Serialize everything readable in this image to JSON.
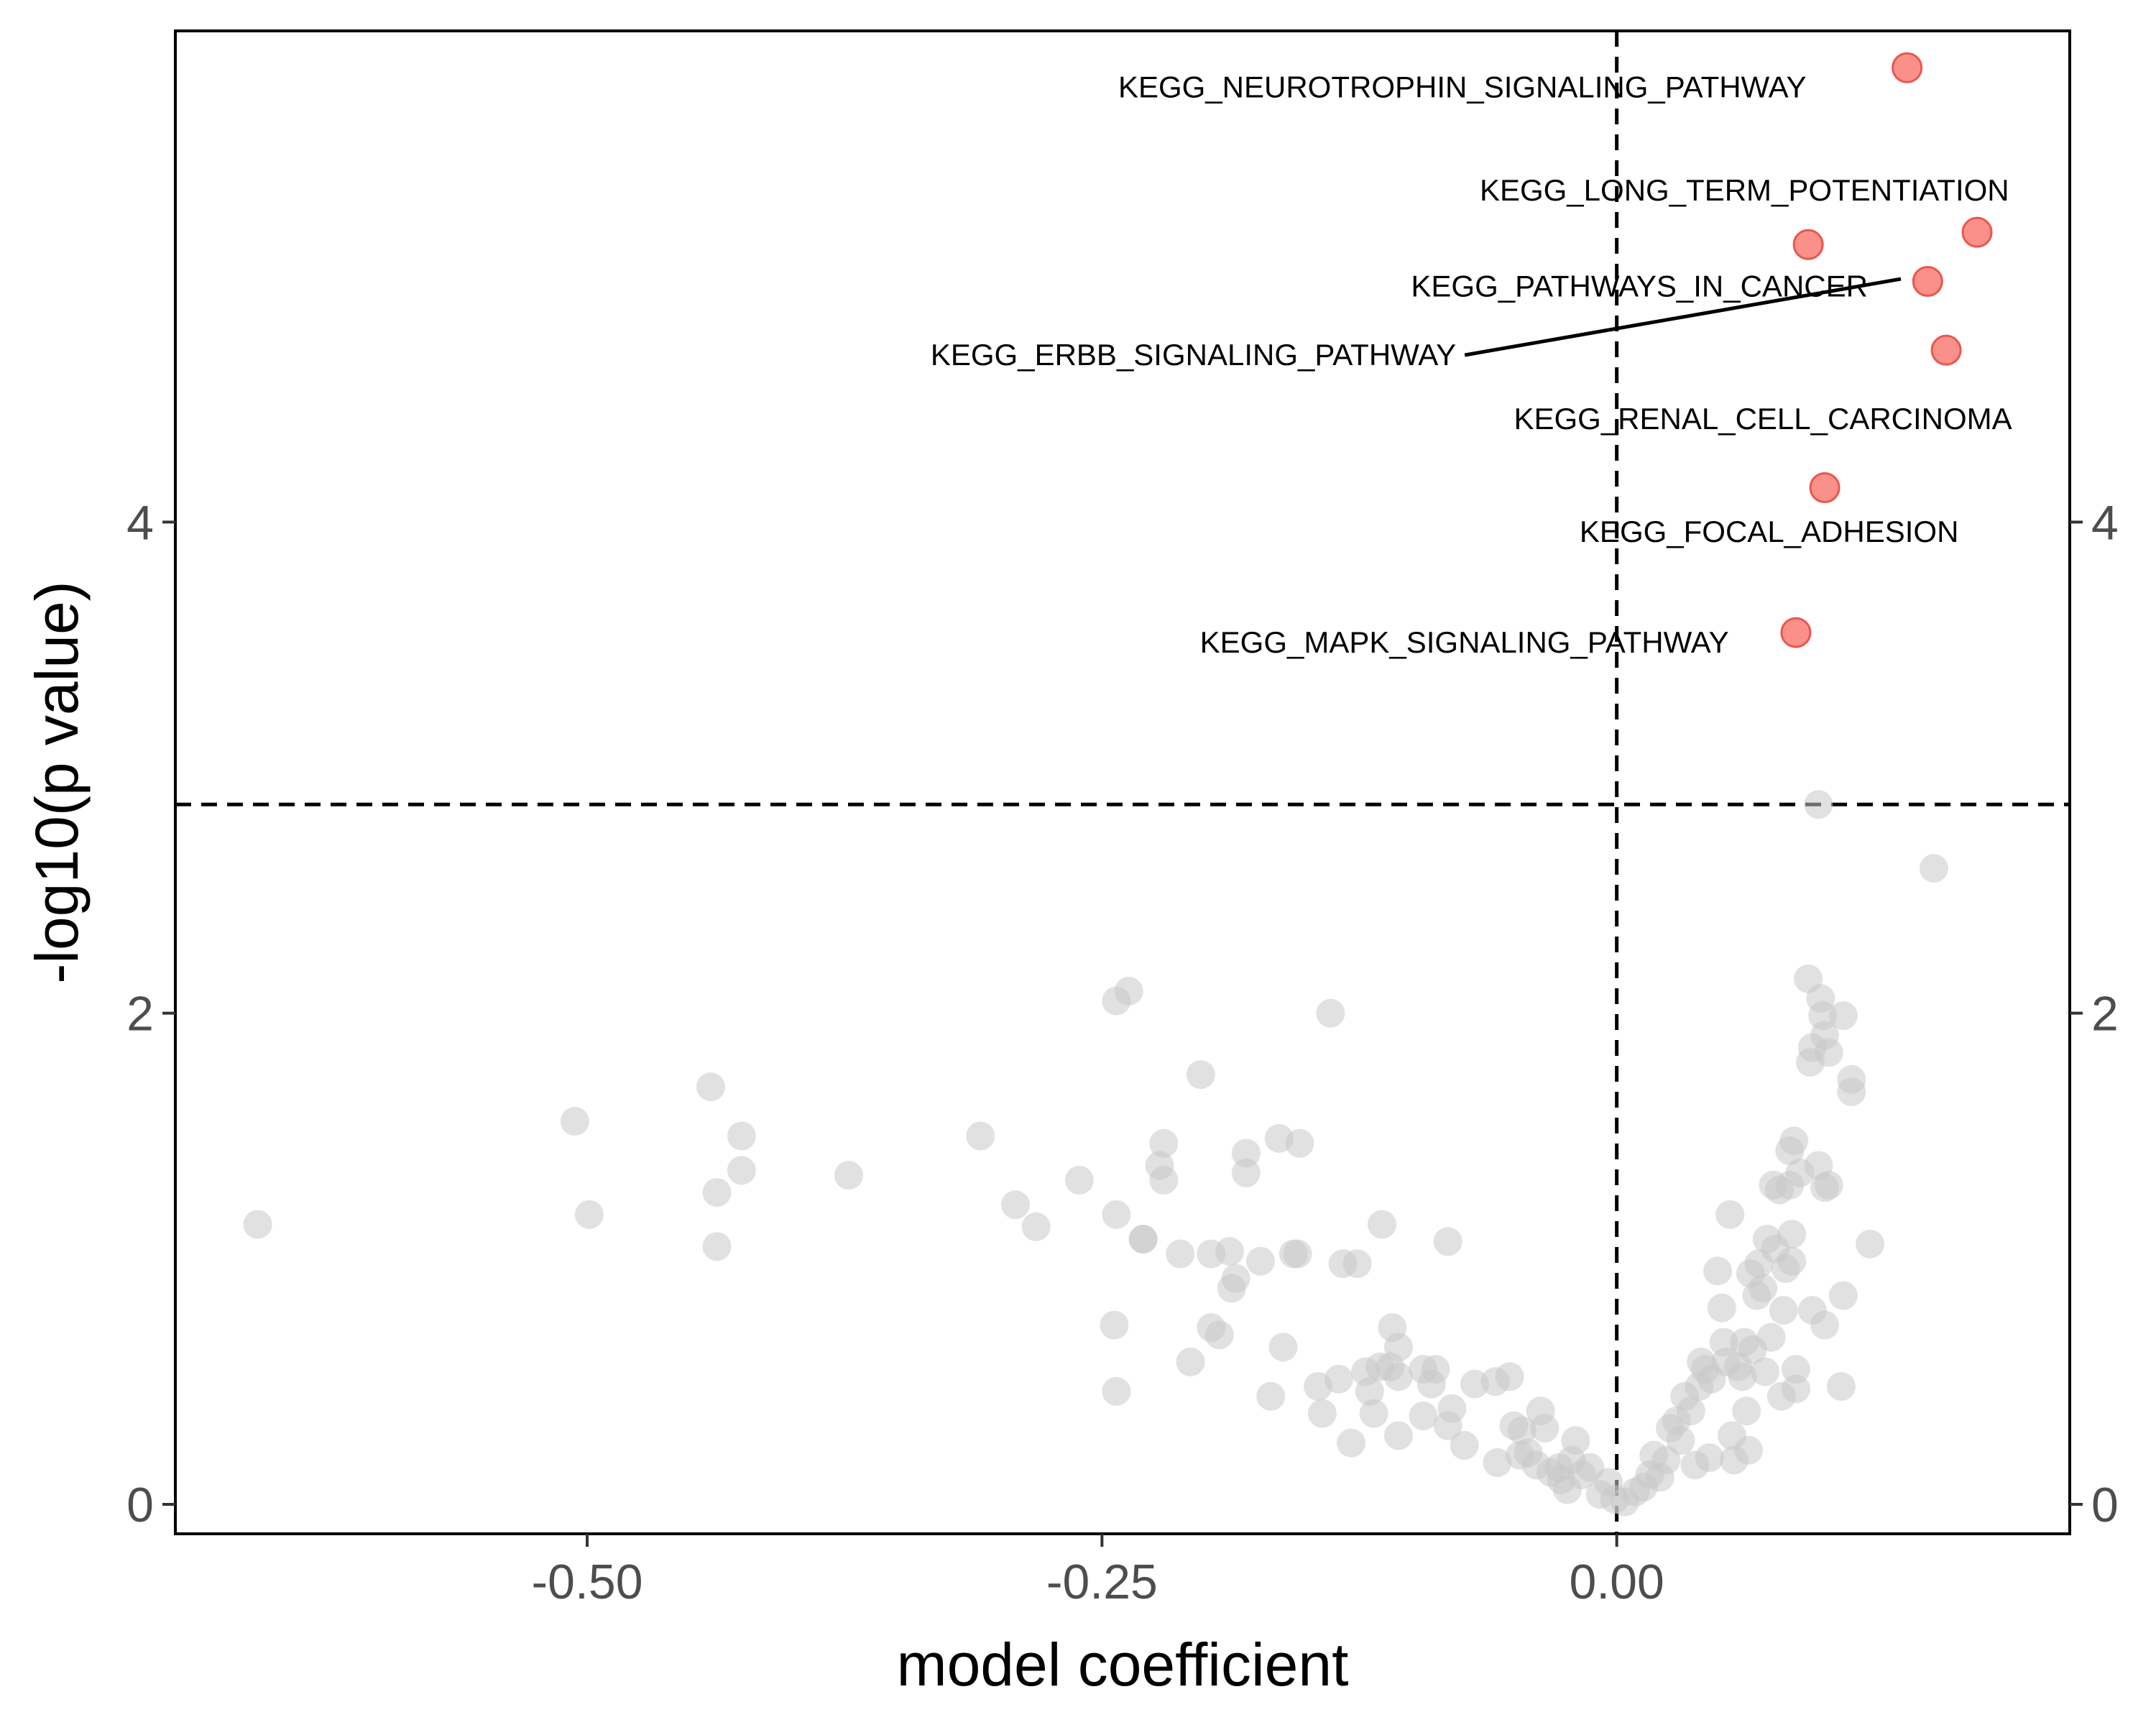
{
  "chart_data": {
    "type": "scatter",
    "xlabel": "model coefficient",
    "ylabel": "-log10(p value)",
    "xlim": [
      -0.7,
      0.22
    ],
    "ylim": [
      -0.12,
      6.0
    ],
    "x_ticks": [
      -0.5,
      -0.25,
      0.0
    ],
    "x_tick_labels": [
      "-0.50",
      "-0.25",
      "0.00"
    ],
    "y_ticks": [
      0,
      2,
      4
    ],
    "y_tick_labels": [
      "0",
      "2",
      "4"
    ],
    "secondary_y_axis": true,
    "reference_lines": {
      "vertical_x": 0.0,
      "horizontal_y": 2.85,
      "style": "dashed"
    },
    "colors": {
      "significant": "#f8766d",
      "nonsignificant": "#c8c8c8"
    },
    "series": [
      {
        "group": "significant",
        "points": [
          {
            "x": 0.141,
            "y": 5.85,
            "label": "KEGG_NEUROTROPHIN_SIGNALING_PATHWAY"
          },
          {
            "x": 0.175,
            "y": 5.18,
            "label": "KEGG_LONG_TERM_POTENTIATION"
          },
          {
            "x": 0.093,
            "y": 5.13
          },
          {
            "x": 0.151,
            "y": 4.98,
            "label": "KEGG_PATHWAYS_IN_CANCER"
          },
          {
            "x": 0.16,
            "y": 4.7,
            "label": "KEGG_RENAL_CELL_CARCINOMA"
          },
          {
            "x": 0.101,
            "y": 4.14,
            "label": "KEGG_FOCAL_ADHESION"
          },
          {
            "x": 0.087,
            "y": 3.55,
            "label": "KEGG_MAPK_SIGNALING_PATHWAY"
          }
        ]
      },
      {
        "group": "nonsignificant",
        "points": [
          {
            "x": -0.66,
            "y": 1.14
          },
          {
            "x": -0.506,
            "y": 1.56
          },
          {
            "x": -0.499,
            "y": 1.18
          },
          {
            "x": -0.44,
            "y": 1.7
          },
          {
            "x": -0.437,
            "y": 1.27
          },
          {
            "x": -0.437,
            "y": 1.05
          },
          {
            "x": -0.425,
            "y": 1.5
          },
          {
            "x": -0.425,
            "y": 1.36
          },
          {
            "x": -0.373,
            "y": 1.34
          },
          {
            "x": -0.309,
            "y": 1.5
          },
          {
            "x": -0.292,
            "y": 1.22
          },
          {
            "x": -0.282,
            "y": 1.13
          },
          {
            "x": -0.261,
            "y": 1.32
          },
          {
            "x": -0.243,
            "y": 2.05
          },
          {
            "x": -0.237,
            "y": 2.09
          },
          {
            "x": -0.243,
            "y": 1.18
          },
          {
            "x": -0.23,
            "y": 1.08
          },
          {
            "x": -0.23,
            "y": 1.08
          },
          {
            "x": -0.22,
            "y": 1.47
          },
          {
            "x": -0.222,
            "y": 1.38
          },
          {
            "x": -0.22,
            "y": 1.32
          },
          {
            "x": -0.212,
            "y": 1.02
          },
          {
            "x": -0.244,
            "y": 0.73
          },
          {
            "x": -0.243,
            "y": 0.46
          },
          {
            "x": -0.207,
            "y": 0.58
          },
          {
            "x": -0.202,
            "y": 1.75
          },
          {
            "x": -0.197,
            "y": 1.02
          },
          {
            "x": -0.188,
            "y": 1.03
          },
          {
            "x": -0.187,
            "y": 0.88
          },
          {
            "x": -0.185,
            "y": 0.92
          },
          {
            "x": -0.197,
            "y": 0.72
          },
          {
            "x": -0.193,
            "y": 0.69
          },
          {
            "x": -0.18,
            "y": 1.43
          },
          {
            "x": -0.18,
            "y": 1.35
          },
          {
            "x": -0.173,
            "y": 0.99
          },
          {
            "x": -0.164,
            "y": 1.49
          },
          {
            "x": -0.154,
            "y": 1.47
          },
          {
            "x": -0.157,
            "y": 1.02
          },
          {
            "x": -0.155,
            "y": 1.02
          },
          {
            "x": -0.162,
            "y": 0.64
          },
          {
            "x": -0.168,
            "y": 0.44
          },
          {
            "x": -0.139,
            "y": 2.0
          },
          {
            "x": -0.133,
            "y": 0.98
          },
          {
            "x": -0.126,
            "y": 0.98
          },
          {
            "x": -0.145,
            "y": 0.48
          },
          {
            "x": -0.143,
            "y": 0.37
          },
          {
            "x": -0.135,
            "y": 0.51
          },
          {
            "x": -0.129,
            "y": 0.25
          },
          {
            "x": -0.122,
            "y": 0.54
          },
          {
            "x": -0.12,
            "y": 0.46
          },
          {
            "x": -0.118,
            "y": 0.37
          },
          {
            "x": -0.114,
            "y": 1.14
          },
          {
            "x": -0.109,
            "y": 0.72
          },
          {
            "x": -0.106,
            "y": 0.64
          },
          {
            "x": -0.115,
            "y": 0.56
          },
          {
            "x": -0.11,
            "y": 0.56
          },
          {
            "x": -0.106,
            "y": 0.52
          },
          {
            "x": -0.106,
            "y": 0.28
          },
          {
            "x": -0.094,
            "y": 0.55
          },
          {
            "x": -0.088,
            "y": 0.55
          },
          {
            "x": -0.09,
            "y": 0.49
          },
          {
            "x": -0.094,
            "y": 0.36
          },
          {
            "x": -0.082,
            "y": 1.07
          },
          {
            "x": -0.08,
            "y": 0.39
          },
          {
            "x": -0.082,
            "y": 0.32
          },
          {
            "x": -0.074,
            "y": 0.24
          },
          {
            "x": -0.069,
            "y": 0.49
          },
          {
            "x": -0.059,
            "y": 0.5
          },
          {
            "x": -0.052,
            "y": 0.52
          },
          {
            "x": -0.058,
            "y": 0.17
          },
          {
            "x": -0.05,
            "y": 0.32
          },
          {
            "x": -0.046,
            "y": 0.3
          },
          {
            "x": -0.047,
            "y": 0.2
          },
          {
            "x": -0.043,
            "y": 0.21
          },
          {
            "x": -0.037,
            "y": 0.38
          },
          {
            "x": -0.035,
            "y": 0.31
          },
          {
            "x": -0.039,
            "y": 0.16
          },
          {
            "x": -0.032,
            "y": 0.13
          },
          {
            "x": -0.028,
            "y": 0.15
          },
          {
            "x": -0.027,
            "y": 0.1
          },
          {
            "x": -0.024,
            "y": 0.06
          },
          {
            "x": -0.022,
            "y": 0.18
          },
          {
            "x": -0.02,
            "y": 0.26
          },
          {
            "x": -0.017,
            "y": 0.12
          },
          {
            "x": -0.013,
            "y": 0.15
          },
          {
            "x": -0.008,
            "y": 0.04
          },
          {
            "x": -0.004,
            "y": 0.09
          },
          {
            "x": -0.001,
            "y": 0.02
          },
          {
            "x": 0.004,
            "y": 0.01
          },
          {
            "x": 0.009,
            "y": 0.05
          },
          {
            "x": 0.013,
            "y": 0.07
          },
          {
            "x": 0.016,
            "y": 0.12
          },
          {
            "x": 0.018,
            "y": 0.2
          },
          {
            "x": 0.021,
            "y": 0.11
          },
          {
            "x": 0.024,
            "y": 0.18
          },
          {
            "x": 0.026,
            "y": 0.31
          },
          {
            "x": 0.029,
            "y": 0.34
          },
          {
            "x": 0.031,
            "y": 0.26
          },
          {
            "x": 0.033,
            "y": 0.44
          },
          {
            "x": 0.036,
            "y": 0.38
          },
          {
            "x": 0.038,
            "y": 0.16
          },
          {
            "x": 0.04,
            "y": 0.48
          },
          {
            "x": 0.041,
            "y": 0.58
          },
          {
            "x": 0.043,
            "y": 0.55
          },
          {
            "x": 0.045,
            "y": 0.19
          },
          {
            "x": 0.046,
            "y": 0.51
          },
          {
            "x": 0.049,
            "y": 0.95
          },
          {
            "x": 0.051,
            "y": 0.8
          },
          {
            "x": 0.052,
            "y": 0.66
          },
          {
            "x": 0.053,
            "y": 0.58
          },
          {
            "x": 0.055,
            "y": 1.18
          },
          {
            "x": 0.056,
            "y": 0.28
          },
          {
            "x": 0.057,
            "y": 0.18
          },
          {
            "x": 0.059,
            "y": 0.56
          },
          {
            "x": 0.061,
            "y": 0.52
          },
          {
            "x": 0.062,
            "y": 0.66
          },
          {
            "x": 0.063,
            "y": 0.38
          },
          {
            "x": 0.064,
            "y": 0.22
          },
          {
            "x": 0.065,
            "y": 0.94
          },
          {
            "x": 0.066,
            "y": 0.63
          },
          {
            "x": 0.068,
            "y": 0.85
          },
          {
            "x": 0.069,
            "y": 0.98
          },
          {
            "x": 0.071,
            "y": 0.88
          },
          {
            "x": 0.072,
            "y": 0.54
          },
          {
            "x": 0.073,
            "y": 1.08
          },
          {
            "x": 0.075,
            "y": 0.68
          },
          {
            "x": 0.076,
            "y": 1.3
          },
          {
            "x": 0.077,
            "y": 1.04
          },
          {
            "x": 0.079,
            "y": 1.28
          },
          {
            "x": 0.08,
            "y": 0.44
          },
          {
            "x": 0.081,
            "y": 0.79
          },
          {
            "x": 0.082,
            "y": 0.96
          },
          {
            "x": 0.084,
            "y": 1.3
          },
          {
            "x": 0.085,
            "y": 1.1
          },
          {
            "x": 0.085,
            "y": 0.99
          },
          {
            "x": 0.086,
            "y": 1.48
          },
          {
            "x": 0.087,
            "y": 0.55
          },
          {
            "x": 0.087,
            "y": 0.47
          },
          {
            "x": 0.084,
            "y": 1.44
          },
          {
            "x": 0.089,
            "y": 1.35
          },
          {
            "x": 0.093,
            "y": 2.14
          },
          {
            "x": 0.094,
            "y": 1.8
          },
          {
            "x": 0.095,
            "y": 1.86
          },
          {
            "x": 0.095,
            "y": 0.79
          },
          {
            "x": 0.098,
            "y": 2.85
          },
          {
            "x": 0.098,
            "y": 1.38
          },
          {
            "x": 0.099,
            "y": 2.06
          },
          {
            "x": 0.1,
            "y": 1.99
          },
          {
            "x": 0.101,
            "y": 1.91
          },
          {
            "x": 0.101,
            "y": 1.29
          },
          {
            "x": 0.101,
            "y": 0.73
          },
          {
            "x": 0.103,
            "y": 1.3
          },
          {
            "x": 0.103,
            "y": 1.84
          },
          {
            "x": 0.11,
            "y": 1.99
          },
          {
            "x": 0.11,
            "y": 0.85
          },
          {
            "x": 0.109,
            "y": 0.48
          },
          {
            "x": 0.114,
            "y": 1.73
          },
          {
            "x": 0.114,
            "y": 1.68
          },
          {
            "x": 0.123,
            "y": 1.06
          },
          {
            "x": 0.154,
            "y": 2.59
          }
        ]
      }
    ],
    "annotations": [
      {
        "text": "KEGG_NEUROTROPHIN_SIGNALING_PATHWAY",
        "x": -0.075,
        "y": 5.77,
        "anchor": "middle",
        "leader": false
      },
      {
        "text": "KEGG_LONG_TERM_POTENTIATION",
        "x": 0.062,
        "y": 5.35,
        "anchor": "middle",
        "leader": false
      },
      {
        "text": "KEGG_PATHWAYS_IN_CANCER",
        "x": 0.011,
        "y": 4.96,
        "anchor": "middle",
        "leader": false
      },
      {
        "text": "KEGG_ERBB_SIGNALING_PATHWAY",
        "x": -0.078,
        "y": 4.68,
        "anchor": "end",
        "leader": true,
        "leader_to_x": 0.138,
        "leader_to_y": 4.99
      },
      {
        "text": "KEGG_RENAL_CELL_CARCINOMA",
        "x": 0.071,
        "y": 4.42,
        "anchor": "middle",
        "leader": false
      },
      {
        "text": "KEGG_FOCAL_ADHESION",
        "x": 0.074,
        "y": 3.96,
        "anchor": "middle",
        "leader": false
      },
      {
        "text": "KEGG_MAPK_SIGNALING_PATHWAY",
        "x": -0.074,
        "y": 3.51,
        "anchor": "middle",
        "leader": false
      }
    ]
  }
}
